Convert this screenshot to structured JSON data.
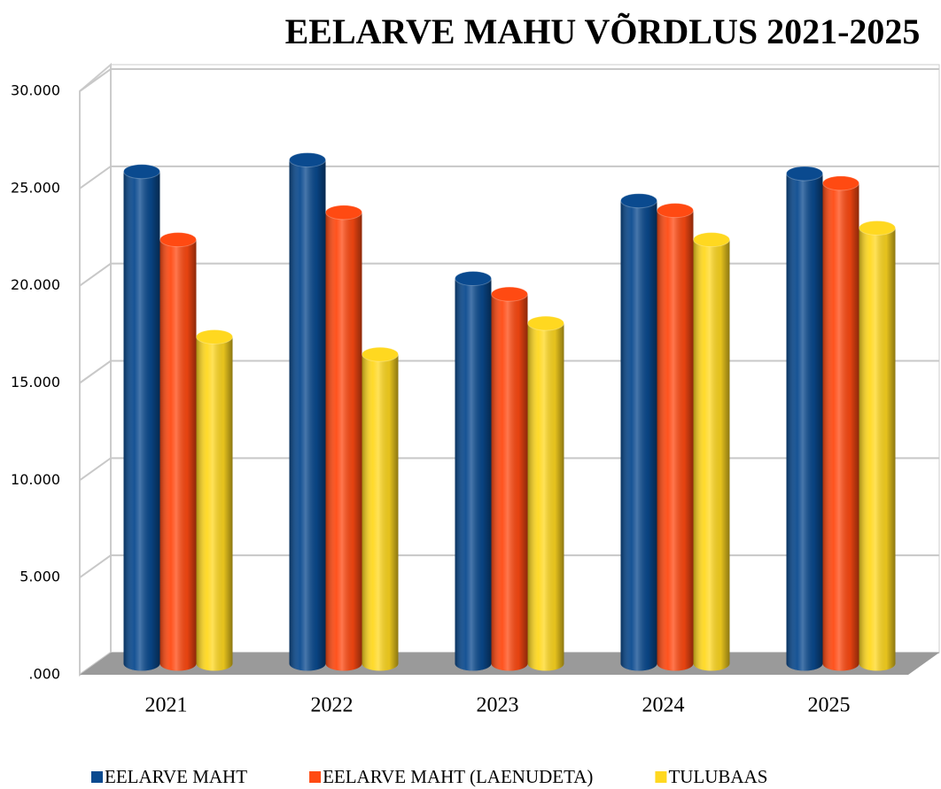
{
  "chart_data": {
    "type": "bar3d",
    "title": "EELARVE MAHU VÕRDLUS 2021-2025",
    "categories": [
      "2021",
      "2022",
      "2023",
      "2024",
      "2025"
    ],
    "series": [
      {
        "name": "EELARVE MAHT",
        "color": "#0a4a8f",
        "values": [
          25300,
          25900,
          19800,
          23800,
          25200
        ]
      },
      {
        "name": "EELARVE MAHT (LAENUDETA)",
        "color": "#ff4a12",
        "values": [
          21800,
          23200,
          19000,
          23300,
          24700
        ]
      },
      {
        "name": "TULUBAAS",
        "color": "#ffd820",
        "values": [
          16800,
          15900,
          17500,
          21800,
          22400
        ]
      }
    ],
    "ylim": [
      0,
      30000
    ],
    "yticks": [
      {
        "value": 0,
        "label": ".000"
      },
      {
        "value": 5000,
        "label": "5.000"
      },
      {
        "value": 10000,
        "label": "10.000"
      },
      {
        "value": 15000,
        "label": "15.000"
      },
      {
        "value": 20000,
        "label": "20.000"
      },
      {
        "value": 25000,
        "label": "25.000"
      },
      {
        "value": 30000,
        "label": "30.000"
      }
    ],
    "grid": true,
    "legend": "bottom"
  }
}
